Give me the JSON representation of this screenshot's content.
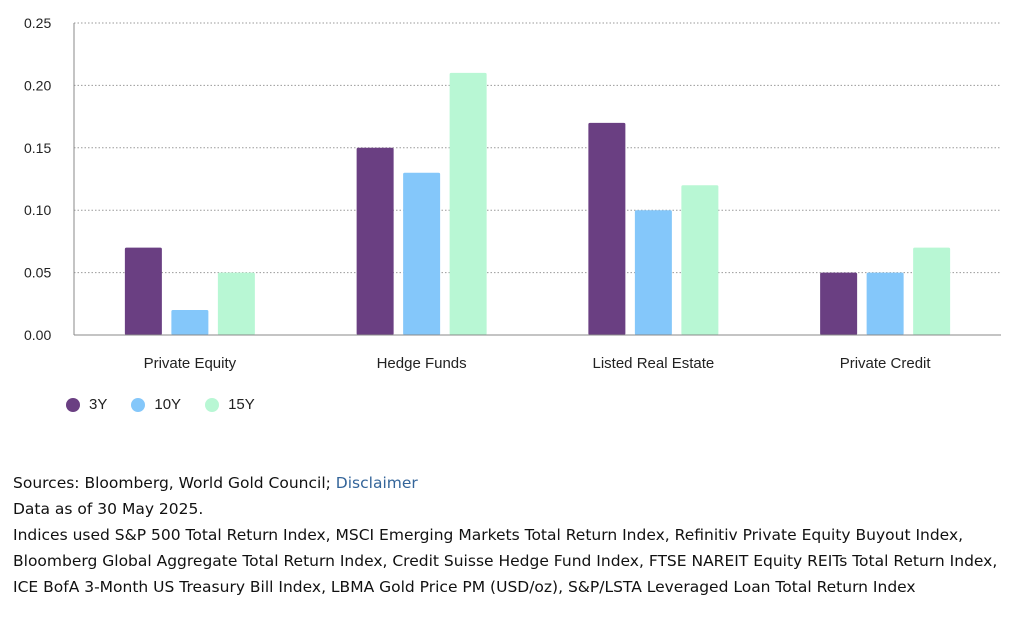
{
  "chart_data": {
    "type": "bar",
    "categories": [
      "Private Equity",
      "Hedge Funds",
      "Listed Real Estate",
      "Private Credit"
    ],
    "series": [
      {
        "name": "3Y",
        "color": "#6a3f82",
        "values": [
          0.07,
          0.15,
          0.17,
          0.05
        ]
      },
      {
        "name": "10Y",
        "color": "#84c7fa",
        "values": [
          0.02,
          0.13,
          0.1,
          0.05
        ]
      },
      {
        "name": "15Y",
        "color": "#b8f7d4",
        "values": [
          0.05,
          0.21,
          0.12,
          0.07
        ]
      }
    ],
    "yticks": [
      "0.00",
      "0.05",
      "0.10",
      "0.15",
      "0.20",
      "0.25"
    ],
    "ylim": [
      0,
      0.25
    ],
    "title": "",
    "xlabel": "",
    "ylabel": "",
    "grid": "horizontal dotted",
    "legend": "bottom-left"
  },
  "notes": {
    "sources_prefix": "Sources: Bloomberg, World Gold Council; ",
    "disclaimer_link": "Disclaimer",
    "data_date": "Data as of 30 May 2025.",
    "indices": "Indices used S&P 500 Total Return Index, MSCI Emerging Markets Total Return Index, Refinitiv Private Equity Buyout Index, Bloomberg Global Aggregate Total Return Index, Credit Suisse Hedge Fund Index, FTSE NAREIT Equity REITs Total Return Index, ICE BofA 3-Month US Treasury Bill Index, LBMA Gold Price PM (USD/oz), S&P/LSTA Leveraged Loan Total Return Index"
  }
}
